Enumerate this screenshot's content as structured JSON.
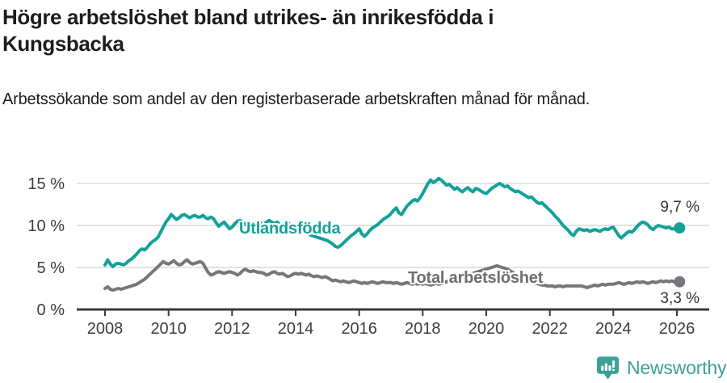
{
  "header": {
    "title": "Högre arbetslöshet bland utrikes- än inrikesfödda i Kungsbacka",
    "subtitle": "Arbetssökande som andel av den registerbaserade arbetskraften månad för månad."
  },
  "chart_data": {
    "type": "line",
    "x_start": "2008-01",
    "x_end": "2026-02",
    "x_step": "monthly",
    "x_tick_labels": [
      "2008",
      "2010",
      "2012",
      "2014",
      "2016",
      "2018",
      "2020",
      "2022",
      "2024",
      "2026"
    ],
    "y_tick_labels": [
      "0 %",
      "5 %",
      "10 %",
      "15 %"
    ],
    "ylim": [
      0,
      16.8
    ],
    "grid": true,
    "legend_position": "inline-on-line",
    "colors": {
      "grid": "#dadada",
      "axis": "#3a3a3a",
      "tick_text": "#3d3d3d"
    },
    "series": [
      {
        "name": "Utlandsfödda",
        "color": "#12a29a",
        "end_label": "9,7 %",
        "end_value": 9.7,
        "values": [
          5.3,
          5.9,
          5.4,
          5.1,
          5.4,
          5.5,
          5.4,
          5.3,
          5.5,
          5.8,
          6.0,
          6.3,
          6.6,
          7.0,
          7.2,
          7.1,
          7.4,
          7.8,
          8.1,
          8.3,
          8.6,
          9.2,
          9.8,
          10.4,
          10.8,
          11.3,
          11.0,
          10.7,
          10.9,
          11.2,
          11.3,
          11.1,
          10.9,
          11.1,
          11.2,
          11.0,
          11.0,
          11.2,
          10.9,
          10.8,
          11.0,
          10.8,
          10.3,
          9.9,
          10.2,
          10.4,
          10.0,
          9.6,
          9.8,
          10.2,
          10.5,
          10.6,
          10.4,
          10.1,
          9.8,
          9.7,
          10.1,
          10.4,
          10.5,
          10.2,
          10.0,
          10.4,
          10.6,
          10.4,
          10.2,
          10.4,
          10.1,
          9.9,
          10.2,
          10.3,
          10.1,
          9.9,
          10.0,
          9.8,
          9.6,
          9.4,
          9.2,
          9.0,
          8.8,
          8.7,
          8.6,
          8.5,
          8.4,
          8.3,
          8.2,
          8.0,
          7.8,
          7.5,
          7.4,
          7.6,
          7.9,
          8.2,
          8.5,
          8.8,
          9.0,
          9.3,
          9.6,
          9.0,
          8.7,
          9.0,
          9.4,
          9.7,
          9.9,
          10.1,
          10.4,
          10.7,
          10.9,
          11.1,
          11.4,
          11.8,
          12.1,
          11.5,
          11.3,
          11.8,
          12.3,
          12.6,
          12.9,
          13.1,
          12.9,
          13.3,
          13.8,
          14.4,
          15.0,
          15.4,
          15.1,
          15.3,
          15.6,
          15.4,
          15.1,
          14.8,
          14.9,
          14.6,
          14.3,
          14.5,
          14.2,
          14.0,
          14.3,
          14.5,
          14.2,
          14.0,
          14.4,
          14.3,
          14.1,
          13.9,
          13.8,
          14.1,
          14.4,
          14.6,
          14.8,
          15.0,
          14.8,
          14.6,
          14.7,
          14.4,
          14.2,
          14.0,
          14.1,
          13.9,
          13.7,
          13.5,
          13.3,
          13.4,
          13.1,
          12.8,
          12.6,
          12.7,
          12.4,
          12.1,
          11.8,
          11.5,
          11.1,
          10.8,
          10.4,
          10.0,
          9.7,
          9.4,
          9.0,
          8.8,
          9.3,
          9.6,
          9.5,
          9.4,
          9.5,
          9.3,
          9.4,
          9.5,
          9.4,
          9.3,
          9.5,
          9.6,
          9.5,
          9.7,
          9.8,
          9.3,
          8.8,
          8.5,
          8.8,
          9.1,
          9.3,
          9.2,
          9.5,
          9.9,
          10.2,
          10.4,
          10.3,
          10.1,
          9.7,
          9.5,
          9.8,
          10.0,
          9.9,
          9.8,
          9.7,
          9.8,
          9.6,
          9.6,
          9.6,
          9.7
        ]
      },
      {
        "name": "Total arbetslöshet",
        "color": "#77777b",
        "label_color": "#6e6e72",
        "end_label": "3,3 %",
        "end_value": 3.3,
        "values": [
          2.5,
          2.7,
          2.4,
          2.3,
          2.4,
          2.5,
          2.4,
          2.5,
          2.6,
          2.7,
          2.8,
          2.9,
          3.0,
          3.2,
          3.4,
          3.6,
          3.9,
          4.2,
          4.5,
          4.8,
          5.1,
          5.4,
          5.7,
          5.5,
          5.4,
          5.6,
          5.8,
          5.5,
          5.3,
          5.4,
          5.7,
          5.9,
          5.6,
          5.4,
          5.5,
          5.6,
          5.7,
          5.5,
          4.9,
          4.4,
          4.1,
          4.2,
          4.4,
          4.5,
          4.4,
          4.3,
          4.4,
          4.5,
          4.4,
          4.3,
          4.1,
          4.3,
          4.6,
          4.8,
          4.6,
          4.5,
          4.6,
          4.5,
          4.4,
          4.4,
          4.3,
          4.1,
          4.2,
          4.4,
          4.5,
          4.3,
          4.2,
          4.3,
          4.1,
          3.9,
          4.0,
          4.2,
          4.3,
          4.2,
          4.3,
          4.2,
          4.1,
          4.2,
          4.0,
          3.9,
          4.0,
          3.9,
          3.8,
          3.9,
          3.8,
          3.6,
          3.4,
          3.5,
          3.4,
          3.3,
          3.4,
          3.3,
          3.2,
          3.3,
          3.4,
          3.3,
          3.2,
          3.1,
          3.2,
          3.1,
          3.2,
          3.3,
          3.2,
          3.1,
          3.2,
          3.3,
          3.2,
          3.2,
          3.2,
          3.1,
          3.2,
          3.1,
          3.0,
          3.1,
          3.2,
          3.1,
          3.0,
          3.1,
          3.0,
          3.1,
          3.0,
          3.1,
          3.0,
          2.9,
          3.0,
          3.1,
          3.0,
          3.1,
          3.2,
          3.3,
          3.4,
          3.5,
          3.6,
          3.7,
          3.8,
          3.9,
          4.0,
          4.1,
          4.2,
          4.3,
          4.4,
          4.5,
          4.6,
          4.7,
          4.8,
          4.9,
          5.0,
          5.1,
          5.2,
          5.1,
          5.0,
          4.9,
          4.8,
          4.6,
          4.4,
          4.2,
          4.0,
          3.8,
          3.6,
          3.5,
          3.4,
          3.3,
          3.2,
          3.1,
          3.0,
          2.9,
          2.9,
          2.8,
          2.8,
          2.8,
          2.7,
          2.8,
          2.8,
          2.7,
          2.8,
          2.8,
          2.8,
          2.8,
          2.8,
          2.8,
          2.8,
          2.7,
          2.6,
          2.7,
          2.8,
          2.9,
          2.8,
          2.9,
          3.0,
          2.9,
          3.0,
          3.0,
          3.0,
          3.1,
          3.2,
          3.1,
          3.0,
          3.1,
          3.2,
          3.1,
          3.2,
          3.3,
          3.2,
          3.3,
          3.2,
          3.1,
          3.2,
          3.3,
          3.2,
          3.3,
          3.4,
          3.3,
          3.4,
          3.3,
          3.4,
          3.3,
          3.3,
          3.3
        ]
      }
    ]
  },
  "footer": {
    "brand": "Newsworthy",
    "brand_color": "#3d9f99",
    "logo_icon": "bar-chart-speech-bubble-icon"
  }
}
